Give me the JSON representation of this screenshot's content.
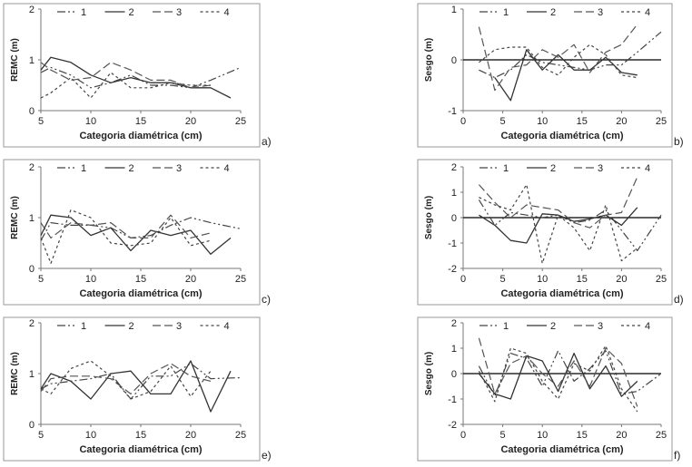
{
  "chart_data": [
    {
      "type": "line",
      "panel_label": "a)",
      "ylabel": "REMC (m)",
      "xlabel": "Categoria diamétrica  (cm)",
      "xlim": [
        5,
        25
      ],
      "ylim": [
        0,
        2
      ],
      "xticks": [
        5,
        10,
        15,
        20,
        25
      ],
      "yticks": [
        0,
        1,
        2
      ],
      "zero_line": false,
      "legend": [
        "1",
        "2",
        "3",
        "4"
      ],
      "series": [
        {
          "name": "1",
          "x": [
            5,
            6,
            8,
            10,
            12,
            14,
            16,
            18,
            20,
            22,
            25
          ],
          "y": [
            0.75,
            0.85,
            0.7,
            0.45,
            0.55,
            0.7,
            0.5,
            0.5,
            0.45,
            0.6,
            0.85
          ]
        },
        {
          "name": "2",
          "x": [
            5,
            6,
            8,
            10,
            12,
            14,
            16,
            18,
            20,
            22,
            24
          ],
          "y": [
            0.8,
            1.05,
            0.95,
            0.7,
            0.55,
            0.65,
            0.55,
            0.55,
            0.45,
            0.45,
            0.25
          ]
        },
        {
          "name": "3",
          "x": [
            5,
            6,
            8,
            10,
            12,
            14,
            16,
            18,
            20,
            22
          ],
          "y": [
            0.95,
            0.8,
            0.6,
            0.65,
            0.95,
            0.8,
            0.6,
            0.6,
            0.45,
            0.5
          ]
        },
        {
          "name": "4",
          "x": [
            5,
            6,
            8,
            10,
            12,
            14,
            16,
            18,
            20,
            22
          ],
          "y": [
            0.25,
            0.35,
            0.65,
            0.25,
            0.75,
            0.45,
            0.45,
            0.55,
            0.5,
            0.5
          ]
        }
      ]
    },
    {
      "type": "line",
      "panel_label": "b)",
      "ylabel": "Sesgo (m)",
      "xlabel": "Categoria diamétrica  (cm)",
      "xlim": [
        0,
        25
      ],
      "ylim": [
        -1,
        1
      ],
      "xticks": [
        0,
        5,
        10,
        15,
        20,
        25
      ],
      "yticks": [
        -1,
        0,
        1
      ],
      "zero_line": true,
      "legend": [
        "1",
        "2",
        "3",
        "4"
      ],
      "series": [
        {
          "name": "1",
          "x": [
            2,
            4,
            6,
            8,
            10,
            12,
            14,
            16,
            18,
            20,
            22,
            25
          ],
          "y": [
            -0.2,
            -0.35,
            -0.2,
            0.1,
            -0.05,
            -0.1,
            -0.15,
            -0.2,
            -0.1,
            -0.1,
            0.15,
            0.55
          ]
        },
        {
          "name": "2",
          "x": [
            4,
            6,
            8,
            10,
            12,
            14,
            16,
            18,
            20,
            22
          ],
          "y": [
            -0.35,
            -0.8,
            0.2,
            -0.2,
            0.1,
            -0.2,
            -0.2,
            0.05,
            -0.25,
            -0.3
          ]
        },
        {
          "name": "3",
          "x": [
            2,
            4,
            6,
            8,
            10,
            12,
            14,
            16,
            18,
            20,
            22
          ],
          "y": [
            0.65,
            -0.6,
            -0.15,
            -0.1,
            0.2,
            0.05,
            0.3,
            -0.25,
            0.15,
            0.3,
            0.7
          ]
        },
        {
          "name": "4",
          "x": [
            2,
            4,
            6,
            8,
            10,
            12,
            14,
            16,
            18,
            20,
            22
          ],
          "y": [
            -0.05,
            0.2,
            0.25,
            0.25,
            -0.15,
            -0.3,
            0.05,
            0.3,
            0.1,
            -0.3,
            -0.35
          ]
        }
      ]
    },
    {
      "type": "line",
      "panel_label": "c)",
      "ylabel": "REMC (m)",
      "xlabel": "Categoria diamétrica  (cm)",
      "xlim": [
        5,
        25
      ],
      "ylim": [
        0,
        2
      ],
      "xticks": [
        5,
        10,
        15,
        20,
        25
      ],
      "yticks": [
        0,
        1,
        2
      ],
      "zero_line": false,
      "legend": [
        "1",
        "2",
        "3",
        "4"
      ],
      "series": [
        {
          "name": "1",
          "x": [
            5,
            6,
            8,
            10,
            12,
            14,
            16,
            18,
            20,
            22,
            25
          ],
          "y": [
            0.55,
            0.9,
            0.85,
            0.85,
            0.8,
            0.6,
            0.65,
            0.85,
            1.0,
            0.9,
            0.78
          ]
        },
        {
          "name": "2",
          "x": [
            5,
            6,
            8,
            10,
            12,
            14,
            16,
            18,
            20,
            22,
            24
          ],
          "y": [
            0.65,
            1.05,
            1.0,
            0.65,
            0.8,
            0.35,
            0.75,
            0.65,
            0.75,
            0.28,
            0.6
          ]
        },
        {
          "name": "3",
          "x": [
            5,
            6,
            8,
            10,
            12,
            14,
            16,
            18,
            20,
            22
          ],
          "y": [
            0.9,
            0.6,
            0.9,
            0.85,
            0.9,
            0.6,
            0.6,
            1.05,
            0.6,
            0.7
          ]
        },
        {
          "name": "4",
          "x": [
            5,
            6,
            8,
            10,
            12,
            14,
            16,
            18,
            20,
            22
          ],
          "y": [
            0.6,
            0.1,
            1.15,
            1.0,
            0.5,
            0.45,
            0.5,
            1.0,
            0.45,
            0.55
          ]
        }
      ]
    },
    {
      "type": "line",
      "panel_label": "d)",
      "ylabel": "Sesgo (m)",
      "xlabel": "Categoria diamétrica  (cm)",
      "xlim": [
        0,
        25
      ],
      "ylim": [
        -2,
        2
      ],
      "xticks": [
        0,
        5,
        10,
        15,
        20,
        25
      ],
      "yticks": [
        -2,
        -1,
        0,
        1,
        2
      ],
      "zero_line": true,
      "legend": [
        "1",
        "2",
        "3",
        "4"
      ],
      "series": [
        {
          "name": "1",
          "x": [
            2,
            4,
            6,
            8,
            10,
            12,
            14,
            16,
            18,
            20,
            22,
            25
          ],
          "y": [
            0.7,
            -0.3,
            0.2,
            0.1,
            0.0,
            0.1,
            -0.2,
            -0.1,
            0.3,
            -0.5,
            -1.3,
            0.1
          ]
        },
        {
          "name": "2",
          "x": [
            2,
            4,
            6,
            8,
            10,
            12,
            14,
            16,
            18,
            20,
            22
          ],
          "y": [
            0.1,
            -0.3,
            -0.9,
            -1.0,
            0.15,
            0.1,
            -0.15,
            -0.05,
            0.1,
            -0.3,
            0.4
          ]
        },
        {
          "name": "3",
          "x": [
            2,
            4,
            6,
            8,
            10,
            12,
            14,
            16,
            18,
            20,
            22
          ],
          "y": [
            1.3,
            0.6,
            0.0,
            0.5,
            0.4,
            0.3,
            -0.2,
            -0.4,
            0.1,
            0.2,
            1.6
          ]
        },
        {
          "name": "4",
          "x": [
            2,
            4,
            6,
            8,
            10,
            12,
            14,
            16,
            18,
            20,
            22
          ],
          "y": [
            0.8,
            0.5,
            0.3,
            1.3,
            -1.8,
            0.1,
            -0.4,
            -1.3,
            0.5,
            -1.7,
            -1.2
          ]
        }
      ]
    },
    {
      "type": "line",
      "panel_label": "e)",
      "ylabel": "REMC (m)",
      "xlabel": "Categoria diamétrica  (cm)",
      "xlim": [
        5,
        25
      ],
      "ylim": [
        0,
        2
      ],
      "xticks": [
        5,
        10,
        15,
        20,
        25
      ],
      "yticks": [
        0,
        1,
        2
      ],
      "zero_line": false,
      "legend": [
        "1",
        "2",
        "3",
        "4"
      ],
      "series": [
        {
          "name": "1",
          "x": [
            5,
            6,
            8,
            10,
            12,
            14,
            16,
            18,
            20,
            22,
            25
          ],
          "y": [
            0.7,
            0.8,
            0.85,
            0.9,
            1.0,
            0.5,
            0.95,
            0.95,
            1.2,
            0.9,
            0.92
          ]
        },
        {
          "name": "2",
          "x": [
            5,
            6,
            8,
            10,
            12,
            14,
            16,
            18,
            20,
            22,
            24
          ],
          "y": [
            0.7,
            1.0,
            0.85,
            0.5,
            1.0,
            1.05,
            0.6,
            0.6,
            1.25,
            0.25,
            1.05
          ]
        },
        {
          "name": "3",
          "x": [
            5,
            6,
            8,
            10,
            12,
            14,
            16,
            18,
            20,
            22
          ],
          "y": [
            0.65,
            0.9,
            0.95,
            0.95,
            0.9,
            0.6,
            1.0,
            1.2,
            0.95,
            0.85
          ]
        },
        {
          "name": "4",
          "x": [
            5,
            6,
            8,
            10,
            12,
            14,
            16,
            18,
            20,
            22
          ],
          "y": [
            0.7,
            0.6,
            1.1,
            1.25,
            0.95,
            0.5,
            0.65,
            1.15,
            0.55,
            1.05
          ]
        }
      ]
    },
    {
      "type": "line",
      "panel_label": "f)",
      "ylabel": "Sesgo (m)",
      "xlabel": "Categoria diamétrica  (cm)",
      "xlim": [
        0,
        25
      ],
      "ylim": [
        -2,
        2
      ],
      "xticks": [
        0,
        5,
        10,
        15,
        20,
        25
      ],
      "yticks": [
        -2,
        -1,
        0,
        1,
        2
      ],
      "zero_line": true,
      "legend": [
        "1",
        "2",
        "3",
        "4"
      ],
      "series": [
        {
          "name": "1",
          "x": [
            2,
            4,
            6,
            8,
            10,
            12,
            14,
            16,
            18,
            20,
            22,
            25
          ],
          "y": [
            0.3,
            -0.9,
            0.8,
            0.6,
            -0.5,
            0.9,
            -0.3,
            0.2,
            0.9,
            -0.8,
            -0.7,
            0.0
          ]
        },
        {
          "name": "2",
          "x": [
            2,
            4,
            6,
            8,
            10,
            12,
            14,
            16,
            18,
            20,
            22
          ],
          "y": [
            0.0,
            -0.8,
            -1.0,
            0.7,
            0.5,
            -0.7,
            0.8,
            -0.6,
            0.3,
            -0.9,
            -0.3
          ]
        },
        {
          "name": "3",
          "x": [
            2,
            4,
            6,
            8,
            10,
            12,
            14,
            16,
            18,
            20,
            22
          ],
          "y": [
            1.4,
            -0.8,
            0.4,
            0.7,
            0.0,
            -0.5,
            0.5,
            -0.5,
            1.0,
            0.4,
            -1.3
          ]
        },
        {
          "name": "4",
          "x": [
            2,
            4,
            6,
            8,
            10,
            12,
            14,
            16,
            18,
            20,
            22
          ],
          "y": [
            0.1,
            -1.1,
            1.0,
            0.8,
            -0.3,
            -1.0,
            0.4,
            0.1,
            1.1,
            -0.6,
            -1.5
          ]
        }
      ]
    }
  ]
}
